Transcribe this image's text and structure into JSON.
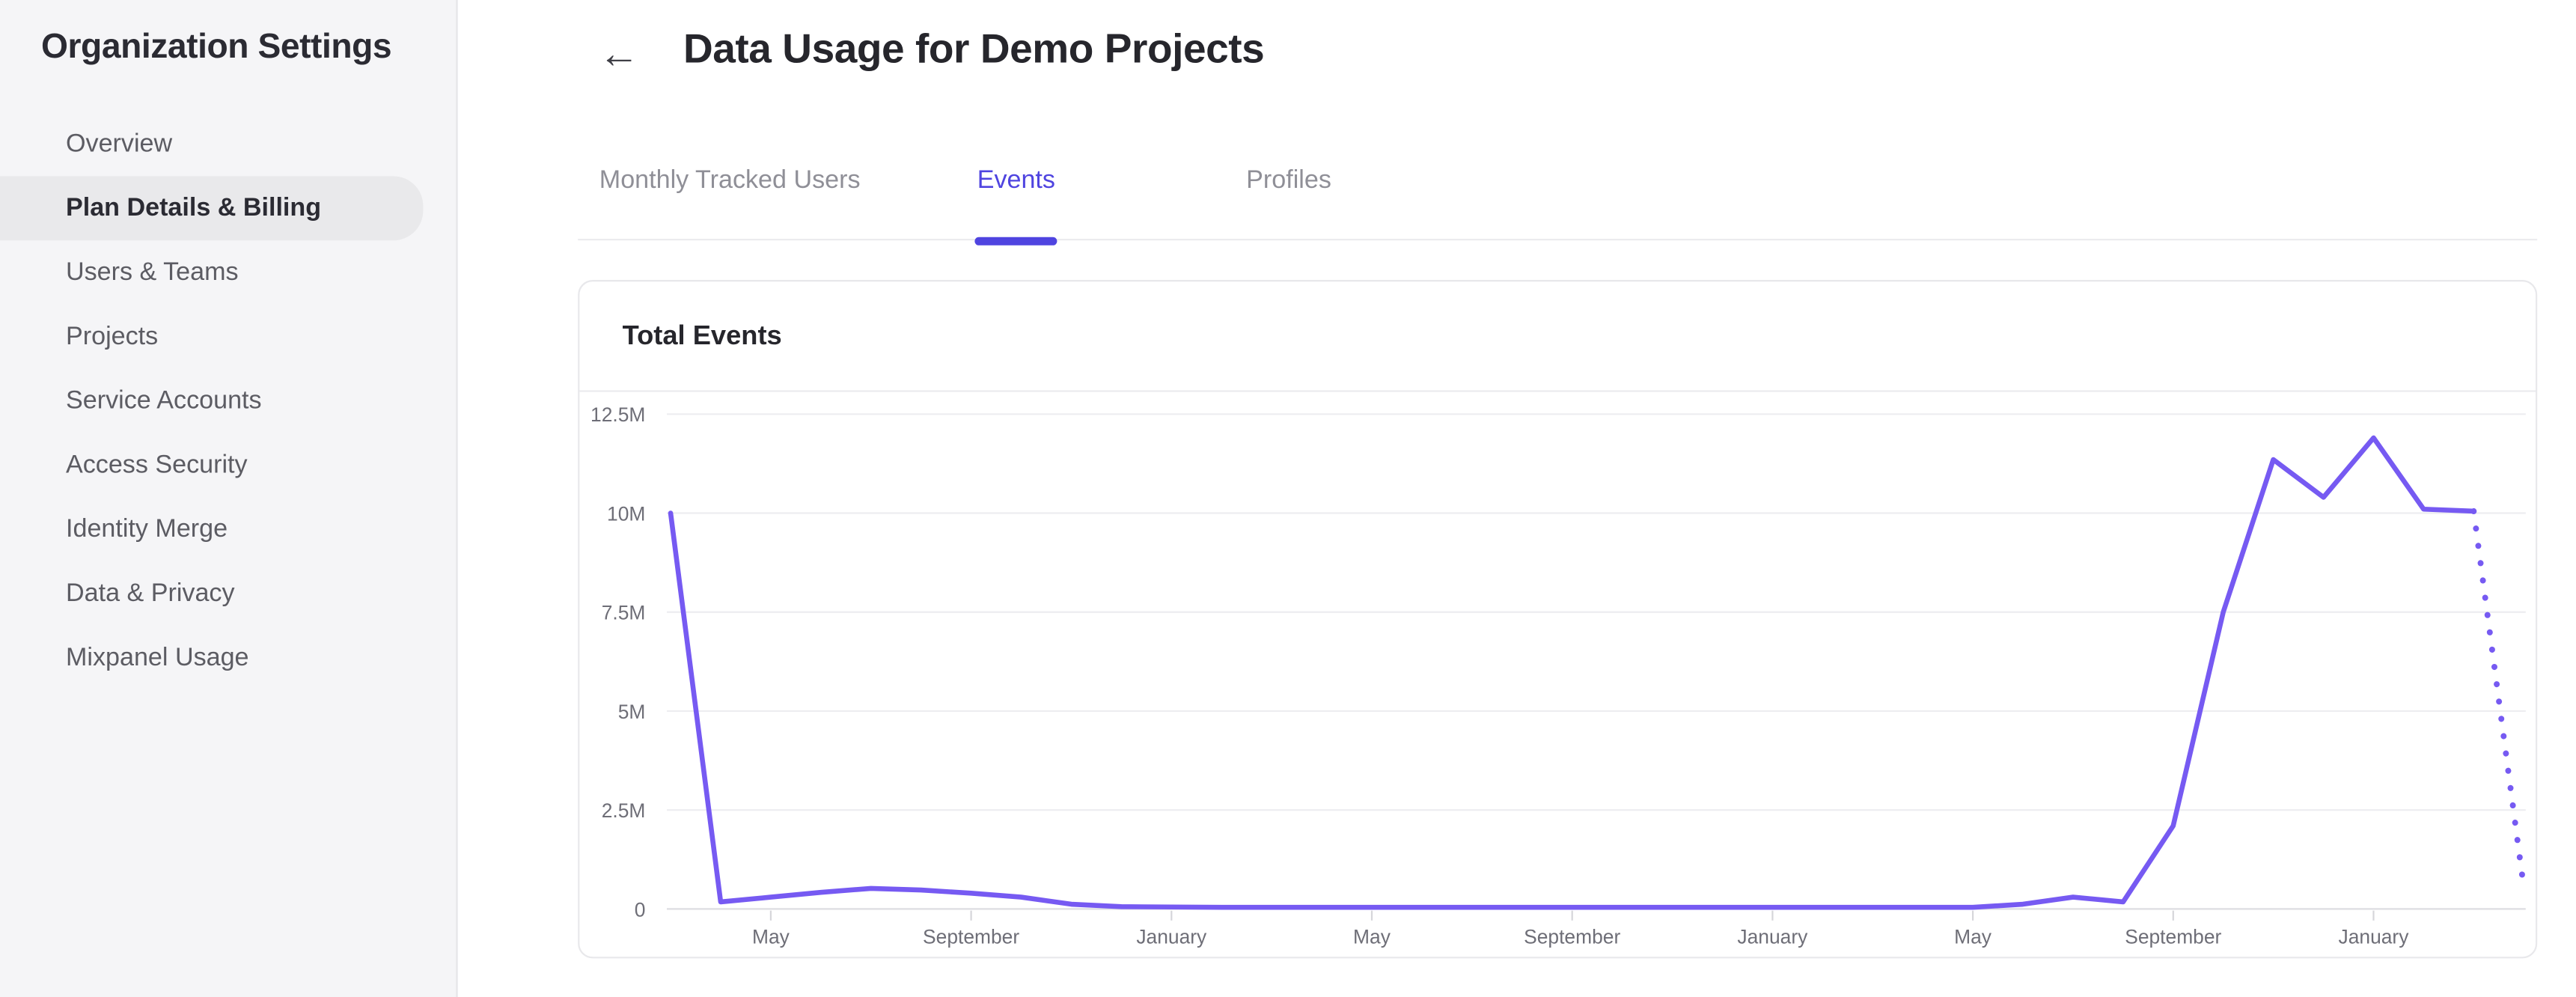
{
  "sidebar": {
    "title": "Organization Settings",
    "items": [
      {
        "label": "Overview",
        "active": false
      },
      {
        "label": "Plan Details & Billing",
        "active": true
      },
      {
        "label": "Users & Teams",
        "active": false
      },
      {
        "label": "Projects",
        "active": false
      },
      {
        "label": "Service Accounts",
        "active": false
      },
      {
        "label": "Access Security",
        "active": false
      },
      {
        "label": "Identity Merge",
        "active": false
      },
      {
        "label": "Data & Privacy",
        "active": false
      },
      {
        "label": "Mixpanel Usage",
        "active": false
      }
    ]
  },
  "header": {
    "back_icon": "←",
    "title": "Data Usage for Demo Projects"
  },
  "tabs": {
    "items": [
      {
        "label": "Monthly Tracked Users",
        "active": false
      },
      {
        "label": "Events",
        "active": true
      },
      {
        "label": "Profiles",
        "active": false
      }
    ]
  },
  "card": {
    "title": "Total Events"
  },
  "colors": {
    "accent": "#4f44e0",
    "line": "#765af2",
    "grid_line": "#ededf0",
    "axis_line": "#dddde2",
    "tick": "#d6d6da",
    "sidebar_bg": "#f5f5f7",
    "active_pill": "#e9e9eb"
  },
  "chart_data": {
    "type": "line",
    "title": "Total Events",
    "ylabel": "",
    "xlabel": "",
    "ylim_millions": [
      0,
      12.5
    ],
    "grid": true,
    "y_ticks": [
      "12.5M",
      "10M",
      "7.5M",
      "5M",
      "2.5M",
      "0"
    ],
    "x_tick_labels": [
      "May",
      "September",
      "January",
      "May",
      "September",
      "January",
      "May",
      "September",
      "January"
    ],
    "x_tick_point_indices": [
      2,
      6,
      10,
      14,
      18,
      22,
      26,
      30,
      34
    ],
    "values_millions": [
      10,
      0.18,
      0.3,
      0.42,
      0.52,
      0.48,
      0.4,
      0.3,
      0.12,
      0.06,
      0.05,
      0.04,
      0.04,
      0.04,
      0.04,
      0.04,
      0.04,
      0.04,
      0.04,
      0.04,
      0.04,
      0.04,
      0.04,
      0.04,
      0.04,
      0.04,
      0.04,
      0.12,
      0.3,
      0.18,
      2.1,
      7.5,
      11.35,
      10.4,
      11.9,
      10.1,
      10.05,
      0.55
    ],
    "solid_until_index": 36,
    "last_segment_style": "dotted-projection"
  }
}
